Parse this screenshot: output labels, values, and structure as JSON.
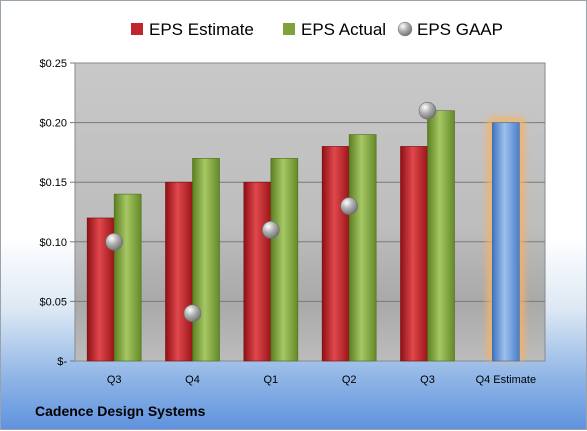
{
  "company": "Cadence Design Systems",
  "chart_data": {
    "type": "bar",
    "title": "",
    "xlabel": "",
    "ylabel": "",
    "categories": [
      "Q3",
      "Q4",
      "Q1",
      "Q2",
      "Q3",
      "Q4 Estimate"
    ],
    "series": [
      {
        "name": "EPS Estimate",
        "kind": "bar",
        "color": "#c0262d",
        "values": [
          0.12,
          0.15,
          0.15,
          0.18,
          0.18,
          null
        ]
      },
      {
        "name": "EPS Actual",
        "kind": "bar",
        "color": "#7fa33a",
        "values": [
          0.14,
          0.17,
          0.17,
          0.19,
          0.21,
          null
        ]
      },
      {
        "name": "EPS GAAP",
        "kind": "marker",
        "color": "#9a9a9a",
        "values": [
          0.1,
          0.04,
          0.11,
          0.13,
          0.21,
          null
        ]
      }
    ],
    "forecast": {
      "category": "Q4 Estimate",
      "value": 0.2,
      "color": "#6f9fd8",
      "glow": "#f5b266"
    },
    "y_ticks": [
      {
        "value": 0,
        "label": "$-"
      },
      {
        "value": 0.05,
        "label": "$0.05"
      },
      {
        "value": 0.1,
        "label": "$0.10"
      },
      {
        "value": 0.15,
        "label": "$0.15"
      },
      {
        "value": 0.2,
        "label": "$0.20"
      },
      {
        "value": 0.25,
        "label": "$0.25"
      }
    ],
    "ylim": [
      0,
      0.25
    ],
    "grid": true,
    "legend_position": "top"
  }
}
